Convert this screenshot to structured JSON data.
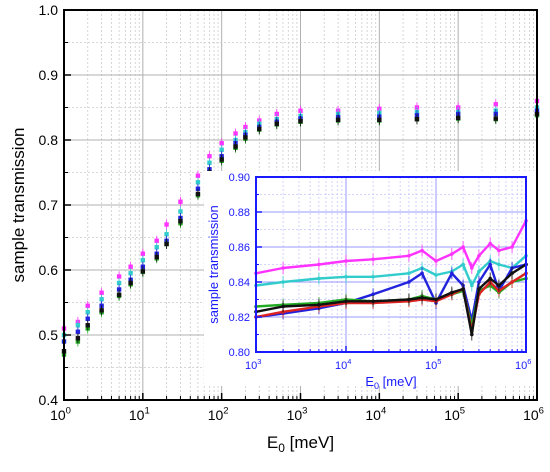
{
  "chart_data": [
    {
      "type": "scatter",
      "xlabel_base": "E",
      "xlabel_sub": "0",
      "xlabel_unit": " [meV]",
      "ylabel": "sample transmission",
      "xscale": "log",
      "xlim": [
        1,
        1000000
      ],
      "ylim": [
        0.4,
        1.0
      ],
      "yticks": [
        "0.4",
        "0.5",
        "0.6",
        "0.7",
        "0.8",
        "0.9",
        "1.0"
      ],
      "xtick_exponents": [
        "0",
        "1",
        "2",
        "3",
        "4",
        "5",
        "6"
      ],
      "grid": true,
      "legend": "none",
      "series": [
        {
          "color": "#ff33ff",
          "x": [
            1,
            1.5,
            2,
            3,
            5,
            7,
            10,
            15,
            20,
            30,
            50,
            70,
            100,
            150,
            200,
            300,
            500,
            1000,
            3000,
            10000,
            30000,
            100000,
            300000,
            1000000
          ],
          "y": [
            0.51,
            0.52,
            0.545,
            0.565,
            0.59,
            0.605,
            0.625,
            0.645,
            0.67,
            0.705,
            0.745,
            0.775,
            0.795,
            0.81,
            0.82,
            0.83,
            0.84,
            0.845,
            0.845,
            0.848,
            0.85,
            0.85,
            0.855,
            0.86
          ]
        },
        {
          "color": "#33cccc",
          "x": [
            1,
            1.5,
            2,
            3,
            5,
            7,
            10,
            15,
            20,
            30,
            50,
            70,
            100,
            150,
            200,
            300,
            500,
            1000,
            3000,
            10000,
            30000,
            100000,
            300000,
            1000000
          ],
          "y": [
            0.5,
            0.515,
            0.535,
            0.555,
            0.58,
            0.595,
            0.615,
            0.635,
            0.655,
            0.69,
            0.735,
            0.765,
            0.785,
            0.8,
            0.812,
            0.825,
            0.832,
            0.837,
            0.84,
            0.842,
            0.843,
            0.843,
            0.845,
            0.85
          ]
        },
        {
          "color": "#2222dd",
          "x": [
            1,
            1.5,
            2,
            3,
            5,
            7,
            10,
            15,
            20,
            30,
            50,
            70,
            100,
            150,
            200,
            300,
            500,
            1000,
            3000,
            10000,
            30000,
            100000,
            300000,
            1000000
          ],
          "y": [
            0.49,
            0.505,
            0.525,
            0.545,
            0.57,
            0.585,
            0.605,
            0.625,
            0.645,
            0.68,
            0.725,
            0.755,
            0.775,
            0.795,
            0.808,
            0.82,
            0.828,
            0.833,
            0.835,
            0.836,
            0.838,
            0.84,
            0.84,
            0.845
          ]
        },
        {
          "color": "#22aa22",
          "x": [
            1,
            1.5,
            2,
            3,
            5,
            7,
            10,
            15,
            20,
            30,
            50,
            70,
            100,
            150,
            200,
            300,
            500,
            1000,
            3000,
            10000,
            30000,
            100000,
            300000,
            1000000
          ],
          "y": [
            0.47,
            0.49,
            0.51,
            0.535,
            0.56,
            0.578,
            0.597,
            0.618,
            0.64,
            0.672,
            0.715,
            0.748,
            0.768,
            0.788,
            0.802,
            0.816,
            0.824,
            0.828,
            0.83,
            0.83,
            0.832,
            0.833,
            0.832,
            0.838
          ]
        },
        {
          "color": "#111111",
          "x": [
            1,
            1.5,
            2,
            3,
            5,
            7,
            10,
            15,
            20,
            30,
            50,
            70,
            100,
            150,
            200,
            300,
            500,
            1000,
            3000,
            10000,
            30000,
            100000,
            300000,
            1000000
          ],
          "y": [
            0.475,
            0.495,
            0.515,
            0.538,
            0.562,
            0.58,
            0.598,
            0.62,
            0.64,
            0.675,
            0.717,
            0.75,
            0.77,
            0.79,
            0.804,
            0.817,
            0.825,
            0.829,
            0.831,
            0.831,
            0.832,
            0.834,
            0.833,
            0.84
          ]
        }
      ]
    },
    {
      "type": "line",
      "xlabel_base": "E",
      "xlabel_sub": "0",
      "xlabel_unit": " [meV]",
      "ylabel": "sample transmission",
      "xscale": "log",
      "xlim": [
        1000,
        1000000
      ],
      "ylim": [
        0.8,
        0.9
      ],
      "yticks": [
        "0.80",
        "0.82",
        "0.84",
        "0.86",
        "0.88",
        "0.90"
      ],
      "xtick_exponents": [
        "3",
        "4",
        "5",
        "6"
      ],
      "grid": true,
      "legend": "none",
      "series": [
        {
          "color": "#ff33ff",
          "x": [
            1000,
            2000,
            5000,
            10000,
            20000,
            50000,
            70000,
            100000,
            150000,
            200000,
            250000,
            300000,
            400000,
            500000,
            700000,
            1000000
          ],
          "y": [
            0.845,
            0.848,
            0.85,
            0.852,
            0.853,
            0.855,
            0.858,
            0.852,
            0.856,
            0.86,
            0.848,
            0.855,
            0.862,
            0.858,
            0.86,
            0.875
          ]
        },
        {
          "color": "#33cccc",
          "x": [
            1000,
            2000,
            5000,
            10000,
            20000,
            50000,
            70000,
            100000,
            150000,
            200000,
            250000,
            300000,
            400000,
            500000,
            700000,
            1000000
          ],
          "y": [
            0.838,
            0.84,
            0.842,
            0.843,
            0.843,
            0.845,
            0.848,
            0.844,
            0.846,
            0.85,
            0.838,
            0.846,
            0.852,
            0.85,
            0.848,
            0.855
          ]
        },
        {
          "color": "#2222dd",
          "x": [
            1000,
            2000,
            5000,
            10000,
            20000,
            50000,
            70000,
            100000,
            150000,
            200000,
            250000,
            300000,
            400000,
            500000,
            700000,
            1000000
          ],
          "y": [
            0.82,
            0.822,
            0.825,
            0.828,
            0.833,
            0.84,
            0.845,
            0.828,
            0.845,
            0.838,
            0.818,
            0.84,
            0.85,
            0.835,
            0.848,
            0.85
          ]
        },
        {
          "color": "#22aa22",
          "x": [
            1000,
            2000,
            5000,
            10000,
            20000,
            50000,
            70000,
            100000,
            150000,
            200000,
            250000,
            300000,
            400000,
            500000,
            700000,
            1000000
          ],
          "y": [
            0.826,
            0.827,
            0.828,
            0.83,
            0.829,
            0.83,
            0.832,
            0.83,
            0.833,
            0.835,
            0.815,
            0.835,
            0.838,
            0.834,
            0.84,
            0.842
          ]
        },
        {
          "color": "#dd2222",
          "x": [
            1000,
            2000,
            5000,
            10000,
            20000,
            50000,
            70000,
            100000,
            150000,
            200000,
            250000,
            300000,
            400000,
            500000,
            700000,
            1000000
          ],
          "y": [
            0.82,
            0.823,
            0.826,
            0.828,
            0.828,
            0.829,
            0.83,
            0.829,
            0.833,
            0.836,
            0.812,
            0.833,
            0.84,
            0.835,
            0.84,
            0.845
          ]
        },
        {
          "color": "#111111",
          "x": [
            1000,
            2000,
            5000,
            10000,
            20000,
            50000,
            70000,
            100000,
            150000,
            200000,
            250000,
            300000,
            400000,
            500000,
            700000,
            1000000
          ],
          "y": [
            0.823,
            0.826,
            0.827,
            0.829,
            0.829,
            0.83,
            0.831,
            0.83,
            0.834,
            0.836,
            0.81,
            0.836,
            0.842,
            0.838,
            0.845,
            0.85
          ]
        }
      ]
    }
  ]
}
